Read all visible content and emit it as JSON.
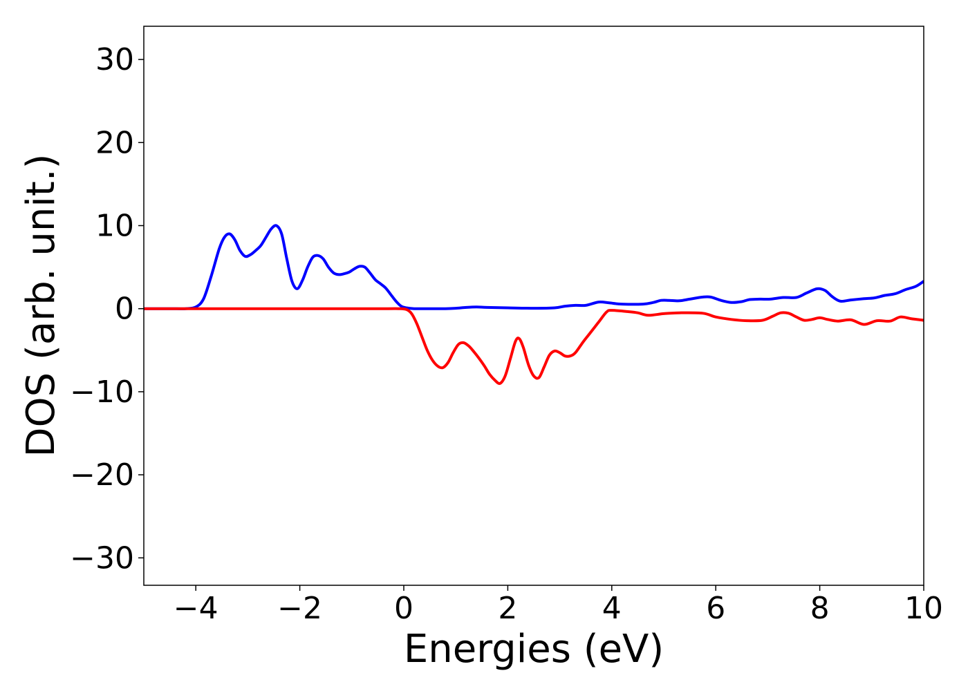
{
  "chart_data": {
    "type": "line",
    "title": "",
    "xlabel": "Energies (eV)",
    "ylabel": "DOS (arb. unit.)",
    "xlim": [
      -5,
      10
    ],
    "ylim": [
      -33.3,
      34
    ],
    "xticks": [
      -4,
      -2,
      0,
      2,
      4,
      6,
      8,
      10
    ],
    "yticks": [
      -30,
      -20,
      -10,
      0,
      10,
      20,
      30
    ],
    "grid": false,
    "legend": "none",
    "series": [
      {
        "color": "#0000ff",
        "x": [
          -5,
          -4.5,
          -4.2,
          -4.0,
          -3.85,
          -3.7,
          -3.55,
          -3.45,
          -3.35,
          -3.25,
          -3.15,
          -3.05,
          -2.95,
          -2.85,
          -2.75,
          -2.65,
          -2.55,
          -2.45,
          -2.35,
          -2.25,
          -2.15,
          -2.05,
          -1.95,
          -1.85,
          -1.75,
          -1.65,
          -1.55,
          -1.45,
          -1.35,
          -1.25,
          -1.15,
          -1.05,
          -0.95,
          -0.85,
          -0.75,
          -0.65,
          -0.55,
          -0.45,
          -0.35,
          -0.25,
          -0.15,
          -0.05,
          0.05,
          0.2,
          0.5,
          0.8,
          1.0,
          1.2,
          1.4,
          1.6,
          2.0,
          2.5,
          2.9,
          3.1,
          3.3,
          3.5,
          3.75,
          3.95,
          4.2,
          4.6,
          4.8,
          4.95,
          5.1,
          5.3,
          5.5,
          5.75,
          5.9,
          6.1,
          6.3,
          6.5,
          6.65,
          6.85,
          7.05,
          7.3,
          7.55,
          7.75,
          7.95,
          8.1,
          8.25,
          8.4,
          8.6,
          8.85,
          9.05,
          9.25,
          9.45,
          9.65,
          9.85,
          10.0
        ],
        "y": [
          0,
          0,
          0,
          0.2,
          1.2,
          4.0,
          7.2,
          8.6,
          9.0,
          8.3,
          7.0,
          6.3,
          6.5,
          7.0,
          7.6,
          8.6,
          9.6,
          10.0,
          9.0,
          6.0,
          3.3,
          2.4,
          3.4,
          5.0,
          6.2,
          6.4,
          6.0,
          5.0,
          4.3,
          4.1,
          4.2,
          4.4,
          4.8,
          5.1,
          5.0,
          4.3,
          3.5,
          3.0,
          2.5,
          1.7,
          0.9,
          0.3,
          0.1,
          0.0,
          0.0,
          0.0,
          0.05,
          0.15,
          0.2,
          0.15,
          0.1,
          0.05,
          0.1,
          0.3,
          0.4,
          0.4,
          0.8,
          0.7,
          0.55,
          0.55,
          0.75,
          1.0,
          1.0,
          0.95,
          1.15,
          1.4,
          1.4,
          1.0,
          0.75,
          0.85,
          1.1,
          1.15,
          1.15,
          1.35,
          1.35,
          1.9,
          2.4,
          2.2,
          1.4,
          0.9,
          1.05,
          1.2,
          1.3,
          1.6,
          1.8,
          2.3,
          2.7,
          3.3
        ]
      },
      {
        "color": "#ff0000",
        "x": [
          -5,
          -1.0,
          -0.3,
          -0.1,
          0.05,
          0.15,
          0.25,
          0.35,
          0.45,
          0.55,
          0.65,
          0.75,
          0.85,
          0.95,
          1.05,
          1.15,
          1.25,
          1.35,
          1.45,
          1.55,
          1.65,
          1.75,
          1.85,
          1.95,
          2.05,
          2.15,
          2.22,
          2.3,
          2.4,
          2.5,
          2.6,
          2.7,
          2.8,
          2.9,
          3.0,
          3.1,
          3.2,
          3.3,
          3.45,
          3.6,
          3.75,
          3.9,
          4.0,
          4.3,
          4.5,
          4.7,
          5.0,
          5.3,
          5.75,
          6.0,
          6.3,
          6.6,
          6.9,
          7.1,
          7.25,
          7.4,
          7.55,
          7.7,
          7.85,
          8.0,
          8.15,
          8.35,
          8.6,
          8.85,
          9.1,
          9.35,
          9.55,
          9.75,
          10.0
        ],
        "y": [
          0,
          0,
          0,
          0,
          -0.1,
          -0.6,
          -1.8,
          -3.4,
          -5.0,
          -6.2,
          -6.9,
          -7.1,
          -6.5,
          -5.3,
          -4.3,
          -4.1,
          -4.5,
          -5.2,
          -6.0,
          -6.9,
          -7.9,
          -8.6,
          -9.0,
          -8.1,
          -6.0,
          -3.9,
          -3.6,
          -4.7,
          -6.8,
          -8.1,
          -8.3,
          -7.0,
          -5.6,
          -5.1,
          -5.3,
          -5.7,
          -5.7,
          -5.3,
          -4.0,
          -2.8,
          -1.6,
          -0.4,
          -0.2,
          -0.35,
          -0.5,
          -0.8,
          -0.6,
          -0.5,
          -0.55,
          -1.0,
          -1.3,
          -1.45,
          -1.4,
          -0.9,
          -0.5,
          -0.55,
          -1.0,
          -1.4,
          -1.3,
          -1.1,
          -1.3,
          -1.5,
          -1.35,
          -1.9,
          -1.45,
          -1.5,
          -1.0,
          -1.2,
          -1.4
        ]
      }
    ]
  }
}
